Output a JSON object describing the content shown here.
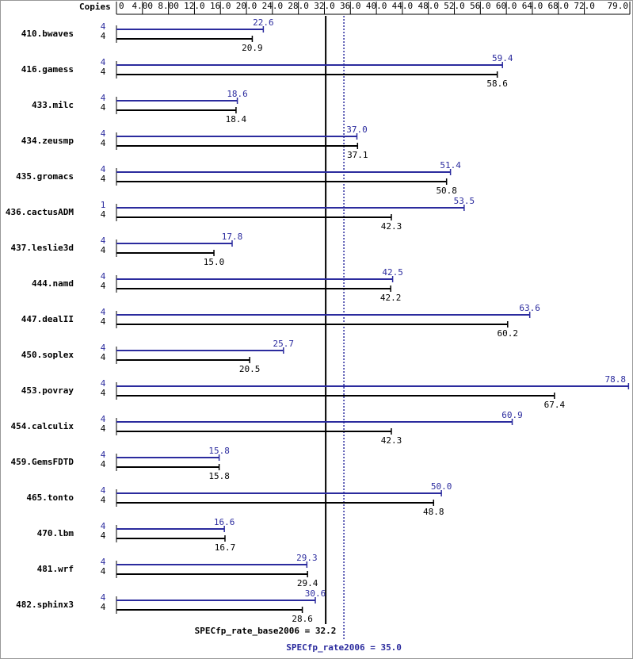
{
  "chart_data": {
    "type": "spec-bar",
    "copies_header": "Copies",
    "categories": [
      "410.bwaves",
      "416.gamess",
      "433.milc",
      "434.zeusmp",
      "435.gromacs",
      "436.cactusADM",
      "437.leslie3d",
      "444.namd",
      "447.dealII",
      "450.soplex",
      "453.povray",
      "454.calculix",
      "459.GemsFDTD",
      "465.tonto",
      "470.lbm",
      "481.wrf",
      "482.sphinx3"
    ],
    "series": [
      {
        "name": "peak",
        "color": "#2b2b9e",
        "copies": [
          4,
          4,
          4,
          4,
          4,
          1,
          4,
          4,
          4,
          4,
          4,
          4,
          4,
          4,
          4,
          4,
          4
        ],
        "values": [
          22.6,
          59.4,
          18.6,
          37.0,
          51.4,
          53.5,
          17.8,
          42.5,
          63.6,
          25.7,
          78.8,
          60.9,
          15.8,
          50.0,
          16.6,
          29.3,
          30.6
        ],
        "value_labels": [
          "22.6",
          "59.4",
          "18.6",
          "37.0",
          "51.4",
          "53.5",
          "17.8",
          "42.5",
          "63.6",
          "25.7",
          "78.8",
          "60.9",
          "15.8",
          "50.0",
          "16.6",
          "29.3",
          "30.6"
        ]
      },
      {
        "name": "base",
        "color": "#000000",
        "copies": [
          4,
          4,
          4,
          4,
          4,
          4,
          4,
          4,
          4,
          4,
          4,
          4,
          4,
          4,
          4,
          4,
          4
        ],
        "values": [
          20.9,
          58.6,
          18.4,
          37.1,
          50.8,
          42.3,
          15.0,
          42.2,
          60.2,
          20.5,
          67.4,
          42.3,
          15.8,
          48.8,
          16.7,
          29.4,
          28.6
        ],
        "value_labels": [
          "20.9",
          "58.6",
          "18.4",
          "37.1",
          "50.8",
          "42.3",
          "15.0",
          "42.2",
          "60.2",
          "20.5",
          "67.4",
          "42.3",
          "15.8",
          "48.8",
          "16.7",
          "29.4",
          "28.6"
        ]
      }
    ],
    "xlim": [
      0,
      79.0
    ],
    "xticks": [
      0,
      {
        "value": 4,
        "label": "4.00"
      },
      {
        "value": 8,
        "label": "8.00"
      },
      {
        "value": 12,
        "label": "12.0"
      },
      {
        "value": 16,
        "label": "16.0"
      },
      {
        "value": 20,
        "label": "20.0"
      },
      {
        "value": 24,
        "label": "24.0"
      },
      {
        "value": 28,
        "label": "28.0"
      },
      {
        "value": 32,
        "label": "32.0"
      },
      {
        "value": 36,
        "label": "36.0"
      },
      {
        "value": 40,
        "label": "40.0"
      },
      {
        "value": 44,
        "label": "44.0"
      },
      {
        "value": 48,
        "label": "48.0"
      },
      {
        "value": 52,
        "label": "52.0"
      },
      {
        "value": 56,
        "label": "56.0"
      },
      {
        "value": 60,
        "label": "60.0"
      },
      {
        "value": 64,
        "label": "64.0"
      },
      {
        "value": 68,
        "label": "68.0"
      },
      {
        "value": 72,
        "label": "72.0"
      },
      {
        "value": 79,
        "label": "79.0"
      }
    ],
    "reference_lines": [
      {
        "value": 32.2,
        "label": "SPECfp_rate_base2006 = 32.2",
        "color": "#000000",
        "dashed": false
      },
      {
        "value": 35.0,
        "label": "SPECfp_rate2006 = 35.0",
        "color": "#2b2b9e",
        "dashed": true
      }
    ]
  }
}
